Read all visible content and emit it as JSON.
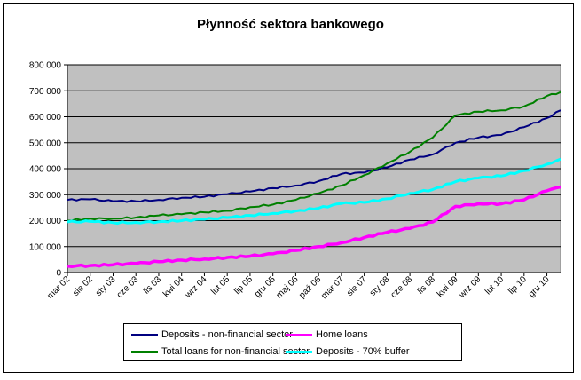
{
  "chart_data": {
    "type": "line",
    "title": "Płynność sektora bankowego",
    "xlabel": "",
    "ylabel": "",
    "ylim": [
      0,
      800000
    ],
    "yticks": [
      "0",
      "100 000",
      "200 000",
      "300 000",
      "400 000",
      "500 000",
      "600 000",
      "700 000",
      "800 000"
    ],
    "grid": true,
    "legend_position": "bottom",
    "x_tick_labels": [
      "mar 02",
      "sie 02",
      "sty 03",
      "cze 03",
      "lis 03",
      "kwi 04",
      "wrz 04",
      "lut 05",
      "lip 05",
      "gru 05",
      "maj 06",
      "paź 06",
      "mar 07",
      "sie 07",
      "sty 08",
      "cze 08",
      "lis 08",
      "kwi 09",
      "wrz 09",
      "lut 10",
      "lip 10",
      "gru 10"
    ],
    "x_months_count": 108,
    "series": [
      {
        "name": "Deposits - non-financial sector",
        "color": "#000080",
        "points": [
          [
            0,
            280000
          ],
          [
            5,
            282000
          ],
          [
            10,
            275000
          ],
          [
            15,
            275000
          ],
          [
            20,
            280000
          ],
          [
            25,
            288000
          ],
          [
            30,
            292000
          ],
          [
            35,
            302000
          ],
          [
            40,
            312000
          ],
          [
            45,
            325000
          ],
          [
            50,
            335000
          ],
          [
            55,
            352000
          ],
          [
            60,
            380000
          ],
          [
            65,
            385000
          ],
          [
            70,
            405000
          ],
          [
            75,
            435000
          ],
          [
            80,
            455000
          ],
          [
            85,
            500000
          ],
          [
            90,
            520000
          ],
          [
            95,
            530000
          ],
          [
            100,
            560000
          ],
          [
            105,
            595000
          ],
          [
            108,
            625000
          ]
        ]
      },
      {
        "name": "Home loans",
        "color": "#FF00FF",
        "points": [
          [
            0,
            25000
          ],
          [
            5,
            27000
          ],
          [
            10,
            30000
          ],
          [
            15,
            35000
          ],
          [
            20,
            42000
          ],
          [
            25,
            48000
          ],
          [
            30,
            52000
          ],
          [
            35,
            58000
          ],
          [
            40,
            63000
          ],
          [
            45,
            72000
          ],
          [
            50,
            85000
          ],
          [
            55,
            100000
          ],
          [
            60,
            115000
          ],
          [
            65,
            135000
          ],
          [
            70,
            155000
          ],
          [
            75,
            170000
          ],
          [
            80,
            195000
          ],
          [
            85,
            255000
          ],
          [
            90,
            265000
          ],
          [
            95,
            265000
          ],
          [
            100,
            280000
          ],
          [
            105,
            315000
          ],
          [
            108,
            330000
          ]
        ]
      },
      {
        "name": "Total loans for non-financial sector",
        "color": "#008000",
        "points": [
          [
            0,
            200000
          ],
          [
            5,
            208000
          ],
          [
            10,
            208000
          ],
          [
            15,
            212000
          ],
          [
            20,
            220000
          ],
          [
            25,
            225000
          ],
          [
            30,
            232000
          ],
          [
            35,
            238000
          ],
          [
            40,
            252000
          ],
          [
            45,
            262000
          ],
          [
            50,
            280000
          ],
          [
            55,
            305000
          ],
          [
            60,
            335000
          ],
          [
            65,
            375000
          ],
          [
            70,
            420000
          ],
          [
            75,
            465000
          ],
          [
            80,
            520000
          ],
          [
            85,
            605000
          ],
          [
            90,
            620000
          ],
          [
            95,
            625000
          ],
          [
            100,
            640000
          ],
          [
            105,
            680000
          ],
          [
            108,
            695000
          ]
        ]
      },
      {
        "name": "Deposits - 70% buffer",
        "color": "#00FFFF",
        "points": [
          [
            0,
            195000
          ],
          [
            5,
            197000
          ],
          [
            10,
            192000
          ],
          [
            15,
            193000
          ],
          [
            20,
            196000
          ],
          [
            25,
            200000
          ],
          [
            30,
            205000
          ],
          [
            35,
            212000
          ],
          [
            40,
            220000
          ],
          [
            45,
            228000
          ],
          [
            50,
            237000
          ],
          [
            55,
            248000
          ],
          [
            60,
            266000
          ],
          [
            65,
            270000
          ],
          [
            70,
            284000
          ],
          [
            75,
            305000
          ],
          [
            80,
            320000
          ],
          [
            85,
            350000
          ],
          [
            90,
            364000
          ],
          [
            95,
            372000
          ],
          [
            100,
            392000
          ],
          [
            105,
            417000
          ],
          [
            108,
            437000
          ]
        ]
      }
    ]
  }
}
